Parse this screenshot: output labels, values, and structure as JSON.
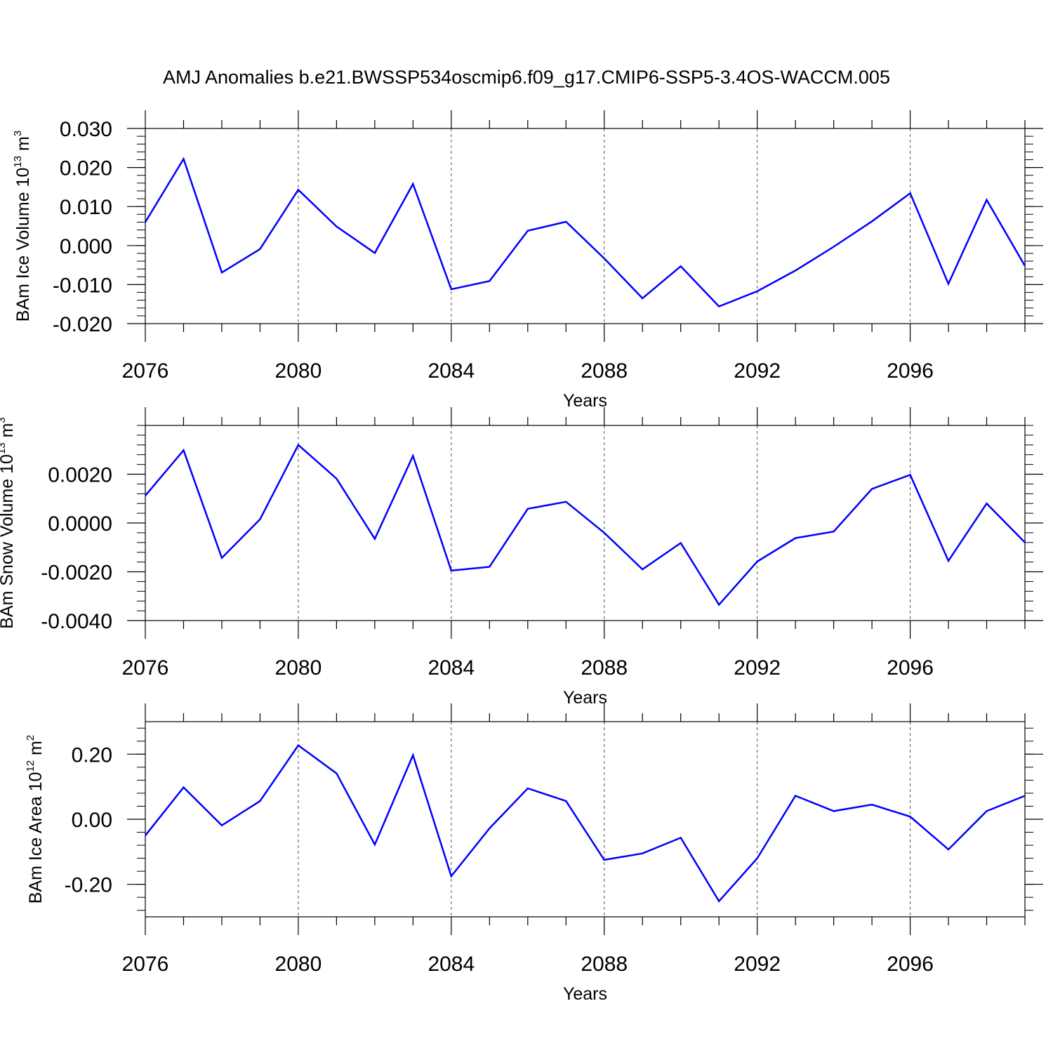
{
  "title": "AMJ Anomalies b.e21.BWSSP534oscmip6.f09_g17.CMIP6-SSP5-3.4OS-WACCM.005",
  "colors": {
    "line": "#0000ff",
    "axis": "#000000",
    "grid": "#555555"
  },
  "chart_data": [
    {
      "type": "line",
      "ylabel": {
        "base": "BAm Ice Volume 10",
        "exp": "13",
        "unit": " m",
        "unit_exp": "3"
      },
      "xlabel": "Years",
      "xlim": [
        2076,
        2099
      ],
      "ylim": [
        -0.02,
        0.03
      ],
      "xticks": [
        2076,
        2080,
        2084,
        2088,
        2092,
        2096
      ],
      "yticks": [
        -0.02,
        -0.01,
        0.0,
        0.01,
        0.02,
        0.03
      ],
      "yticklabels": [
        "-0.020",
        "-0.010",
        "0.000",
        "0.010",
        "0.020",
        "0.030"
      ],
      "grid": "vertical dashed",
      "x": [
        2076,
        2077,
        2078,
        2079,
        2080,
        2081,
        2082,
        2083,
        2084,
        2085,
        2086,
        2087,
        2088,
        2089,
        2090,
        2091,
        2092,
        2093,
        2094,
        2095,
        2096,
        2097,
        2098,
        2099
      ],
      "series": [
        {
          "values": [
            0.006,
            0.0222,
            -0.0069,
            -0.0009,
            0.0143,
            0.0049,
            -0.0019,
            0.0158,
            -0.0112,
            -0.0091,
            0.0038,
            0.0061,
            -0.0033,
            -0.0135,
            -0.0053,
            -0.0156,
            -0.0117,
            -0.0064,
            -0.0003,
            0.0062,
            0.0134,
            -0.0098,
            0.0117,
            -0.0052
          ]
        }
      ]
    },
    {
      "type": "line",
      "ylabel": {
        "base": "BAm Snow Volume 10",
        "exp": "13",
        "unit": " m",
        "unit_exp": "3"
      },
      "xlabel": "Years",
      "xlim": [
        2076,
        2099
      ],
      "ylim": [
        -0.004,
        0.004
      ],
      "xticks": [
        2076,
        2080,
        2084,
        2088,
        2092,
        2096
      ],
      "yticks": [
        -0.004,
        -0.002,
        0.0,
        0.002
      ],
      "yticklabels": [
        "-0.0040",
        "-0.0020",
        "0.0000",
        "0.0020"
      ],
      "grid": "vertical dashed",
      "x": [
        2076,
        2077,
        2078,
        2079,
        2080,
        2081,
        2082,
        2083,
        2084,
        2085,
        2086,
        2087,
        2088,
        2089,
        2090,
        2091,
        2092,
        2093,
        2094,
        2095,
        2096,
        2097,
        2098,
        2099
      ],
      "series": [
        {
          "values": [
            0.00112,
            0.00298,
            -0.00143,
            0.00015,
            0.0032,
            0.00182,
            -0.00065,
            0.00275,
            -0.00195,
            -0.0018,
            0.00058,
            0.00087,
            -0.0004,
            -0.0019,
            -0.00082,
            -0.00335,
            -0.00158,
            -0.00062,
            -0.00035,
            0.0014,
            0.00197,
            -0.00155,
            0.0008,
            -0.0008
          ]
        }
      ]
    },
    {
      "type": "line",
      "ylabel": {
        "base": "BAm Ice Area 10",
        "exp": "12",
        "unit": " m",
        "unit_exp": "2"
      },
      "xlabel": "Years",
      "xlim": [
        2076,
        2099
      ],
      "ylim": [
        -0.3,
        0.3
      ],
      "xticks": [
        2076,
        2080,
        2084,
        2088,
        2092,
        2096
      ],
      "yticks": [
        -0.2,
        0.0,
        0.2
      ],
      "yticklabels": [
        "-0.20",
        "0.00",
        "0.20"
      ],
      "grid": "vertical dashed",
      "x": [
        2076,
        2077,
        2078,
        2079,
        2080,
        2081,
        2082,
        2083,
        2084,
        2085,
        2086,
        2087,
        2088,
        2089,
        2090,
        2091,
        2092,
        2093,
        2094,
        2095,
        2096,
        2097,
        2098,
        2099
      ],
      "series": [
        {
          "values": [
            -0.05,
            0.098,
            -0.019,
            0.056,
            0.227,
            0.141,
            -0.078,
            0.197,
            -0.175,
            -0.028,
            0.095,
            0.056,
            -0.125,
            -0.105,
            -0.057,
            -0.252,
            -0.12,
            0.072,
            0.025,
            0.045,
            0.008,
            -0.093,
            0.025,
            0.072
          ]
        }
      ]
    }
  ]
}
